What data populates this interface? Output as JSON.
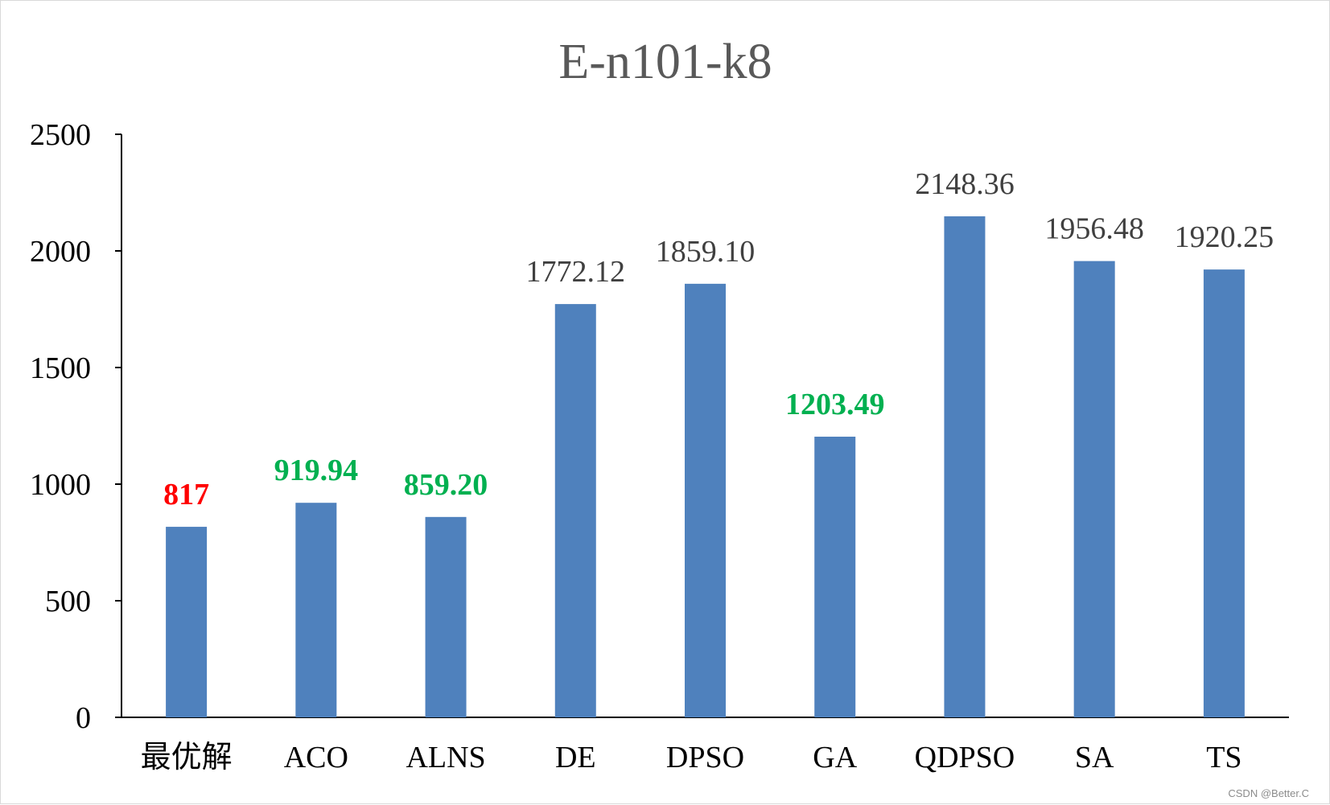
{
  "chart_data": {
    "type": "bar",
    "title": "E-n101-k8",
    "categories": [
      "最优解",
      "ACO",
      "ALNS",
      "DE",
      "DPSO",
      "GA",
      "QDPSO",
      "SA",
      "TS"
    ],
    "values": [
      817,
      919.94,
      859.2,
      1772.12,
      1859.1,
      1203.49,
      2148.36,
      1956.48,
      1920.25
    ],
    "data_labels": [
      "817",
      "919.94",
      "859.20",
      "1772.12",
      "1859.10",
      "1203.49",
      "2148.36",
      "1956.48",
      "1920.25"
    ],
    "label_colors": [
      "#ff0000",
      "#00b050",
      "#00b050",
      "#404040",
      "#404040",
      "#00b050",
      "#404040",
      "#404040",
      "#404040"
    ],
    "label_bold": [
      true,
      true,
      true,
      false,
      false,
      true,
      false,
      false,
      false
    ],
    "yticks": [
      "0",
      "500",
      "1000",
      "1500",
      "2000",
      "2500"
    ],
    "ylim": [
      0,
      2500
    ],
    "bar_color": "#4f81bd",
    "grid": false,
    "legend": "none"
  },
  "watermark": "CSDN @Better.C"
}
